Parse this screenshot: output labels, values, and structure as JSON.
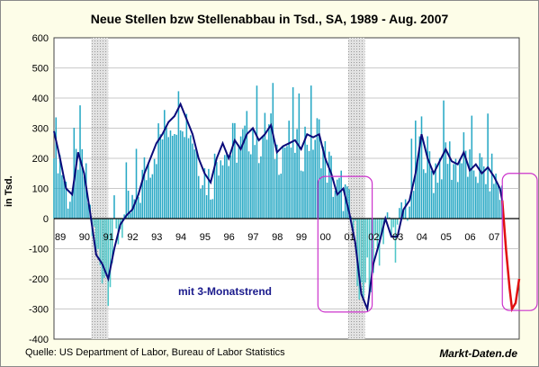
{
  "chart_data": {
    "type": "bar",
    "title": "Neue Stellen bzw Stellenabbau in Tsd., SA, 1989 - Aug. 2007",
    "ylabel": "in Tsd.",
    "xlabel": "",
    "ylim": [
      -400,
      600
    ],
    "yticks": [
      "600",
      "500",
      "400",
      "300",
      "200",
      "100",
      "0",
      "-100",
      "-200",
      "-300",
      "-400"
    ],
    "xticks": [
      "89",
      "90",
      "91",
      "92",
      "93",
      "94",
      "95",
      "96",
      "97",
      "98",
      "99",
      "00",
      "01",
      "02",
      "03",
      "04",
      "05",
      "06",
      "07"
    ],
    "grid": true,
    "recessions": [
      [
        1990.55,
        1991.25
      ],
      [
        2001.2,
        2001.9
      ]
    ],
    "trend_label": "mit 3-Monatstrend",
    "trend": {
      "x": [
        1989.0,
        1989.25,
        1989.5,
        1989.75,
        1990.0,
        1990.25,
        1990.5,
        1990.75,
        1991.0,
        1991.25,
        1991.5,
        1991.75,
        1992.0,
        1992.25,
        1992.5,
        1992.75,
        1993.0,
        1993.25,
        1993.5,
        1993.75,
        1994.0,
        1994.25,
        1994.5,
        1994.75,
        1995.0,
        1995.25,
        1995.5,
        1995.75,
        1996.0,
        1996.25,
        1996.5,
        1996.75,
        1997.0,
        1997.25,
        1997.5,
        1997.75,
        1998.0,
        1998.25,
        1998.5,
        1998.75,
        1999.0,
        1999.25,
        1999.5,
        1999.75,
        2000.0,
        2000.25,
        2000.5,
        2000.75,
        2001.0,
        2001.25,
        2001.5,
        2001.75,
        2002.0,
        2002.25,
        2002.5,
        2002.75,
        2003.0,
        2003.25,
        2003.5,
        2003.75,
        2004.0,
        2004.25,
        2004.5,
        2004.75,
        2005.0,
        2005.25,
        2005.5,
        2005.75,
        2006.0,
        2006.25,
        2006.5,
        2006.75,
        2007.0,
        2007.25,
        2007.5,
        2007.6
      ],
      "values": [
        290,
        200,
        100,
        80,
        220,
        150,
        20,
        -120,
        -150,
        -200,
        -100,
        -20,
        10,
        30,
        80,
        150,
        200,
        250,
        280,
        320,
        340,
        380,
        330,
        280,
        200,
        150,
        120,
        200,
        250,
        200,
        260,
        230,
        280,
        300,
        260,
        280,
        310,
        220,
        240,
        250,
        260,
        230,
        280,
        270,
        280,
        200,
        150,
        80,
        100,
        20,
        -80,
        -250,
        -300,
        -150,
        -80,
        0,
        -60,
        -60,
        30,
        60,
        150,
        280,
        200,
        150,
        190,
        230,
        190,
        180,
        220,
        160,
        180,
        150,
        170,
        140,
        100,
        60
      ]
    },
    "forecast": {
      "x": [
        2007.6,
        2007.75,
        2007.9,
        2008.0,
        2008.15,
        2008.3
      ],
      "values": [
        60,
        -100,
        -230,
        -300,
        -280,
        -200
      ]
    },
    "highlight_boxes": [
      {
        "x": [
          1999.95,
          2002.2
        ],
        "y": [
          -310,
          140
        ]
      },
      {
        "x": [
          2007.6,
          2009.4
        ],
        "y": [
          -305,
          150
        ]
      }
    ]
  },
  "source": "Quelle: US Department of Labor, Bureau of Labor Statistics",
  "brand": "Markt-Daten.de"
}
